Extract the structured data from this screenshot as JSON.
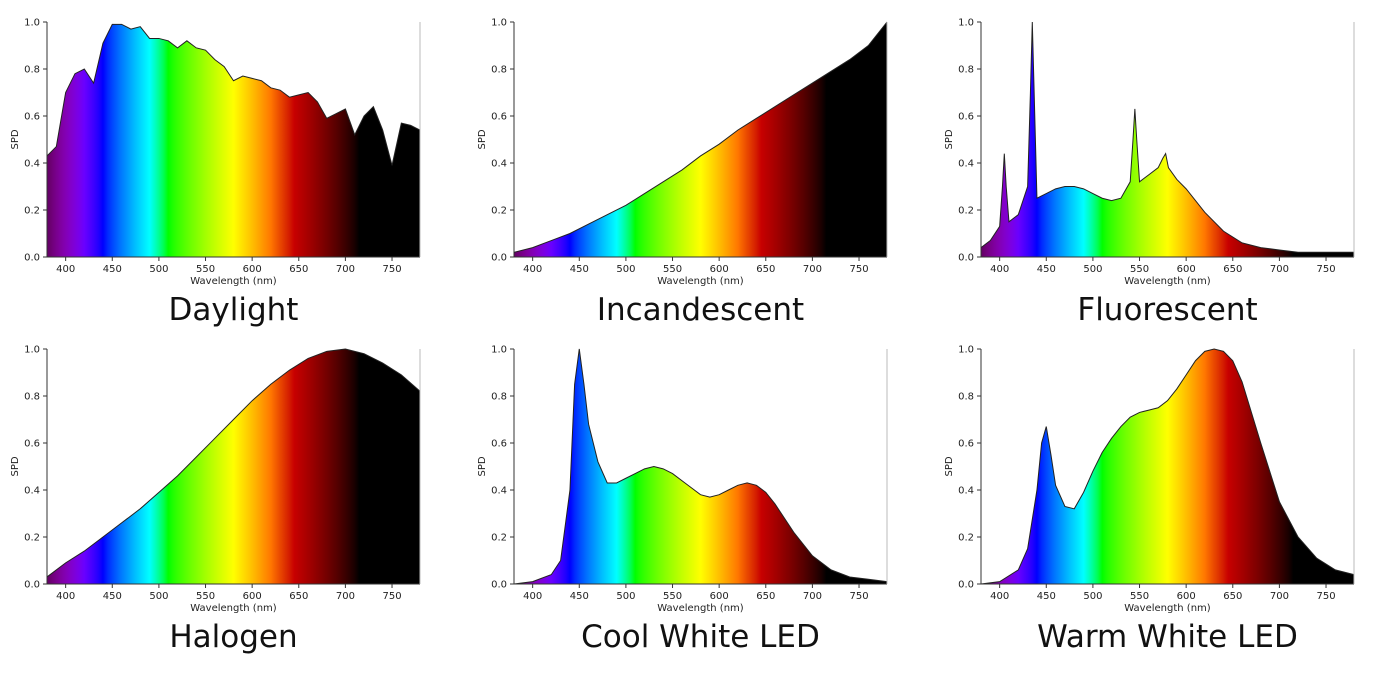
{
  "chart_data": [
    {
      "type": "area",
      "caption": "Daylight",
      "xlabel": "Wavelength (nm)",
      "ylabel": "SPD",
      "xlim": [
        380,
        780
      ],
      "ylim": [
        0,
        1.0
      ],
      "xticks": [
        400,
        450,
        500,
        550,
        600,
        650,
        700,
        750
      ],
      "yticks": [
        0.0,
        0.2,
        0.4,
        0.6,
        0.8,
        1.0
      ],
      "x": [
        380,
        390,
        400,
        410,
        420,
        430,
        440,
        450,
        460,
        470,
        480,
        490,
        500,
        510,
        520,
        530,
        540,
        550,
        560,
        570,
        580,
        590,
        600,
        610,
        620,
        630,
        640,
        650,
        660,
        670,
        680,
        690,
        700,
        710,
        720,
        730,
        740,
        750,
        760,
        770,
        780
      ],
      "y": [
        0.43,
        0.47,
        0.7,
        0.78,
        0.8,
        0.74,
        0.91,
        0.99,
        0.99,
        0.97,
        0.98,
        0.93,
        0.93,
        0.92,
        0.89,
        0.92,
        0.89,
        0.88,
        0.84,
        0.81,
        0.75,
        0.77,
        0.76,
        0.75,
        0.72,
        0.71,
        0.68,
        0.69,
        0.7,
        0.66,
        0.59,
        0.61,
        0.63,
        0.52,
        0.6,
        0.64,
        0.54,
        0.39,
        0.57,
        0.56,
        0.54
      ]
    },
    {
      "type": "area",
      "caption": "Incandescent",
      "xlabel": "Wavelength (nm)",
      "ylabel": "SPD",
      "xlim": [
        380,
        780
      ],
      "ylim": [
        0,
        1.0
      ],
      "xticks": [
        400,
        450,
        500,
        550,
        600,
        650,
        700,
        750
      ],
      "yticks": [
        0.0,
        0.2,
        0.4,
        0.6,
        0.8,
        1.0
      ],
      "x": [
        380,
        400,
        420,
        440,
        460,
        480,
        500,
        520,
        540,
        560,
        580,
        600,
        620,
        640,
        660,
        680,
        700,
        720,
        740,
        760,
        780
      ],
      "y": [
        0.02,
        0.04,
        0.07,
        0.1,
        0.14,
        0.18,
        0.22,
        0.27,
        0.32,
        0.37,
        0.43,
        0.48,
        0.54,
        0.59,
        0.64,
        0.69,
        0.74,
        0.79,
        0.84,
        0.9,
        1.0
      ]
    },
    {
      "type": "area",
      "caption": "Fluorescent",
      "xlabel": "Wavelength (nm)",
      "ylabel": "SPD",
      "xlim": [
        380,
        780
      ],
      "ylim": [
        0,
        1.0
      ],
      "xticks": [
        400,
        450,
        500,
        550,
        600,
        650,
        700,
        750
      ],
      "yticks": [
        0.0,
        0.2,
        0.4,
        0.6,
        0.8,
        1.0
      ],
      "x": [
        380,
        390,
        400,
        403,
        405,
        407,
        410,
        420,
        430,
        433,
        435,
        437,
        440,
        450,
        460,
        470,
        480,
        490,
        500,
        510,
        520,
        530,
        540,
        543,
        545,
        547,
        550,
        560,
        570,
        575,
        578,
        581,
        590,
        600,
        620,
        640,
        660,
        680,
        700,
        720,
        740,
        760,
        780
      ],
      "y": [
        0.04,
        0.07,
        0.13,
        0.3,
        0.44,
        0.3,
        0.15,
        0.18,
        0.3,
        0.7,
        1.0,
        0.7,
        0.25,
        0.27,
        0.29,
        0.3,
        0.3,
        0.29,
        0.27,
        0.25,
        0.24,
        0.25,
        0.32,
        0.5,
        0.63,
        0.5,
        0.32,
        0.35,
        0.38,
        0.42,
        0.44,
        0.38,
        0.33,
        0.29,
        0.19,
        0.11,
        0.06,
        0.04,
        0.03,
        0.02,
        0.02,
        0.02,
        0.02
      ]
    },
    {
      "type": "area",
      "caption": "Halogen",
      "xlabel": "Wavelength (nm)",
      "ylabel": "SPD",
      "xlim": [
        380,
        780
      ],
      "ylim": [
        0,
        1.0
      ],
      "xticks": [
        400,
        450,
        500,
        550,
        600,
        650,
        700,
        750
      ],
      "yticks": [
        0.0,
        0.2,
        0.4,
        0.6,
        0.8,
        1.0
      ],
      "x": [
        380,
        400,
        420,
        440,
        460,
        480,
        500,
        520,
        540,
        560,
        580,
        600,
        620,
        640,
        660,
        680,
        700,
        720,
        740,
        760,
        780
      ],
      "y": [
        0.03,
        0.09,
        0.14,
        0.2,
        0.26,
        0.32,
        0.39,
        0.46,
        0.54,
        0.62,
        0.7,
        0.78,
        0.85,
        0.91,
        0.96,
        0.99,
        1.0,
        0.98,
        0.94,
        0.89,
        0.82
      ]
    },
    {
      "type": "area",
      "caption": "Cool White LED",
      "xlabel": "Wavelength (nm)",
      "ylabel": "SPD",
      "xlim": [
        380,
        780
      ],
      "ylim": [
        0,
        1.0
      ],
      "xticks": [
        400,
        450,
        500,
        550,
        600,
        650,
        700,
        750
      ],
      "yticks": [
        0.0,
        0.2,
        0.4,
        0.6,
        0.8,
        1.0
      ],
      "x": [
        380,
        400,
        420,
        430,
        440,
        445,
        450,
        455,
        460,
        470,
        480,
        490,
        500,
        510,
        520,
        530,
        540,
        550,
        560,
        570,
        580,
        590,
        600,
        610,
        620,
        630,
        640,
        650,
        660,
        680,
        700,
        720,
        740,
        760,
        780
      ],
      "y": [
        0.0,
        0.01,
        0.04,
        0.1,
        0.4,
        0.85,
        1.0,
        0.85,
        0.68,
        0.52,
        0.43,
        0.43,
        0.45,
        0.47,
        0.49,
        0.5,
        0.49,
        0.47,
        0.44,
        0.41,
        0.38,
        0.37,
        0.38,
        0.4,
        0.42,
        0.43,
        0.42,
        0.39,
        0.34,
        0.22,
        0.12,
        0.06,
        0.03,
        0.02,
        0.01
      ]
    },
    {
      "type": "area",
      "caption": "Warm White LED",
      "xlabel": "Wavelength (nm)",
      "ylabel": "SPD",
      "xlim": [
        380,
        780
      ],
      "ylim": [
        0,
        1.0
      ],
      "xticks": [
        400,
        450,
        500,
        550,
        600,
        650,
        700,
        750
      ],
      "yticks": [
        0.0,
        0.2,
        0.4,
        0.6,
        0.8,
        1.0
      ],
      "x": [
        380,
        400,
        420,
        430,
        440,
        445,
        450,
        455,
        460,
        470,
        480,
        490,
        500,
        510,
        520,
        530,
        540,
        550,
        560,
        570,
        580,
        590,
        600,
        610,
        620,
        630,
        640,
        650,
        660,
        680,
        700,
        720,
        740,
        760,
        780
      ],
      "y": [
        0.0,
        0.01,
        0.06,
        0.15,
        0.4,
        0.6,
        0.67,
        0.55,
        0.42,
        0.33,
        0.32,
        0.39,
        0.48,
        0.56,
        0.62,
        0.67,
        0.71,
        0.73,
        0.74,
        0.75,
        0.78,
        0.83,
        0.89,
        0.95,
        0.99,
        1.0,
        0.99,
        0.95,
        0.86,
        0.6,
        0.35,
        0.2,
        0.11,
        0.06,
        0.04
      ]
    }
  ]
}
